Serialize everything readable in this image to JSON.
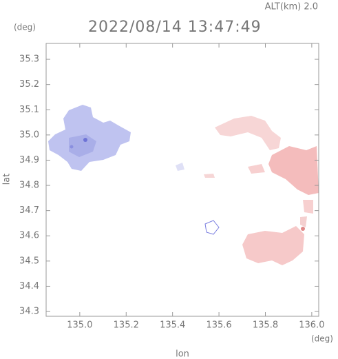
{
  "chart_data": {
    "type": "map",
    "title": "2022/08/14 13:47:49",
    "subtitle": "ALT(km) 2.0",
    "x_label": "lon",
    "y_label": "lat",
    "x_unit": "(deg)",
    "y_unit": "(deg)",
    "xlim": [
      134.855,
      136.03
    ],
    "ylim": [
      34.281,
      35.363
    ],
    "xticks": [
      {
        "value": 135,
        "label": "135.0"
      },
      135.2,
      135.4,
      135.6,
      135.8,
      {
        "value": 136,
        "label": "136.0"
      }
    ],
    "yticks": [
      35.3,
      35.2,
      35.1,
      {
        "value": 35,
        "label": "35.0"
      },
      34.9,
      34.8,
      34.7,
      34.6,
      34.5,
      34.4,
      34.3
    ]
  }
}
